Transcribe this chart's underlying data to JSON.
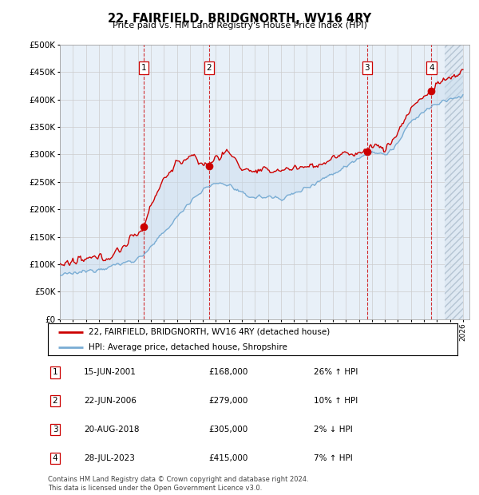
{
  "title": "22, FAIRFIELD, BRIDGNORTH, WV16 4RY",
  "subtitle": "Price paid vs. HM Land Registry's House Price Index (HPI)",
  "footer": "Contains HM Land Registry data © Crown copyright and database right 2024.\nThis data is licensed under the Open Government Licence v3.0.",
  "legend_red": "22, FAIRFIELD, BRIDGNORTH, WV16 4RY (detached house)",
  "legend_blue": "HPI: Average price, detached house, Shropshire",
  "sales": [
    {
      "label": "1",
      "date_num": 2001.46,
      "price": 168000,
      "hpi_pct": "26% ↑ HPI",
      "date_str": "15-JUN-2001"
    },
    {
      "label": "2",
      "date_num": 2006.47,
      "price": 279000,
      "hpi_pct": "10% ↑ HPI",
      "date_str": "22-JUN-2006"
    },
    {
      "label": "3",
      "date_num": 2018.63,
      "price": 305000,
      "hpi_pct": "2% ↓ HPI",
      "date_str": "20-AUG-2018"
    },
    {
      "label": "4",
      "date_num": 2023.57,
      "price": 415000,
      "hpi_pct": "7% ↑ HPI",
      "date_str": "28-JUL-2023"
    }
  ],
  "blue_anchors_x": [
    1995,
    1996,
    1997,
    1998,
    1999,
    2000,
    2001,
    2002,
    2003,
    2004,
    2005,
    2006,
    2007,
    2008,
    2009,
    2010,
    2011,
    2012,
    2013,
    2014,
    2015,
    2016,
    2017,
    2018,
    2019,
    2020,
    2021,
    2022,
    2023,
    2024,
    2025,
    2026
  ],
  "blue_anchors_y": [
    80000,
    83000,
    87000,
    92000,
    97000,
    103000,
    110000,
    130000,
    158000,
    185000,
    215000,
    235000,
    248000,
    245000,
    228000,
    222000,
    223000,
    220000,
    228000,
    240000,
    253000,
    265000,
    278000,
    295000,
    305000,
    298000,
    320000,
    360000,
    378000,
    392000,
    400000,
    408000
  ],
  "red_anchors_x": [
    1995,
    1996,
    1997,
    1998,
    1999,
    2000,
    2001.46,
    2002,
    2003,
    2004,
    2005,
    2006.47,
    2007,
    2008,
    2009,
    2010,
    2011,
    2012,
    2013,
    2014,
    2015,
    2016,
    2017,
    2018.63,
    2019,
    2020,
    2021,
    2022,
    2023.57,
    2024,
    2025,
    2026
  ],
  "red_anchors_y": [
    100000,
    103000,
    108000,
    112000,
    115000,
    135000,
    168000,
    210000,
    255000,
    285000,
    295000,
    279000,
    295000,
    305000,
    275000,
    268000,
    270000,
    272000,
    275000,
    278000,
    282000,
    292000,
    302000,
    305000,
    320000,
    308000,
    340000,
    385000,
    415000,
    428000,
    440000,
    450000
  ],
  "xlim": [
    1995,
    2026.5
  ],
  "ylim": [
    0,
    500000
  ],
  "yticks": [
    0,
    50000,
    100000,
    150000,
    200000,
    250000,
    300000,
    350000,
    400000,
    450000,
    500000
  ],
  "xticks": [
    1995,
    1996,
    1997,
    1998,
    1999,
    2000,
    2001,
    2002,
    2003,
    2004,
    2005,
    2006,
    2007,
    2008,
    2009,
    2010,
    2011,
    2012,
    2013,
    2014,
    2015,
    2016,
    2017,
    2018,
    2019,
    2020,
    2021,
    2022,
    2023,
    2024,
    2025,
    2026
  ],
  "red_color": "#cc0000",
  "blue_color": "#7aadd4",
  "fill_color": "#c8dcee",
  "hatch_color": "#dde8f2",
  "grid_color": "#cccccc",
  "background_color": "#ffffff",
  "plot_bg_color": "#e8f0f8"
}
